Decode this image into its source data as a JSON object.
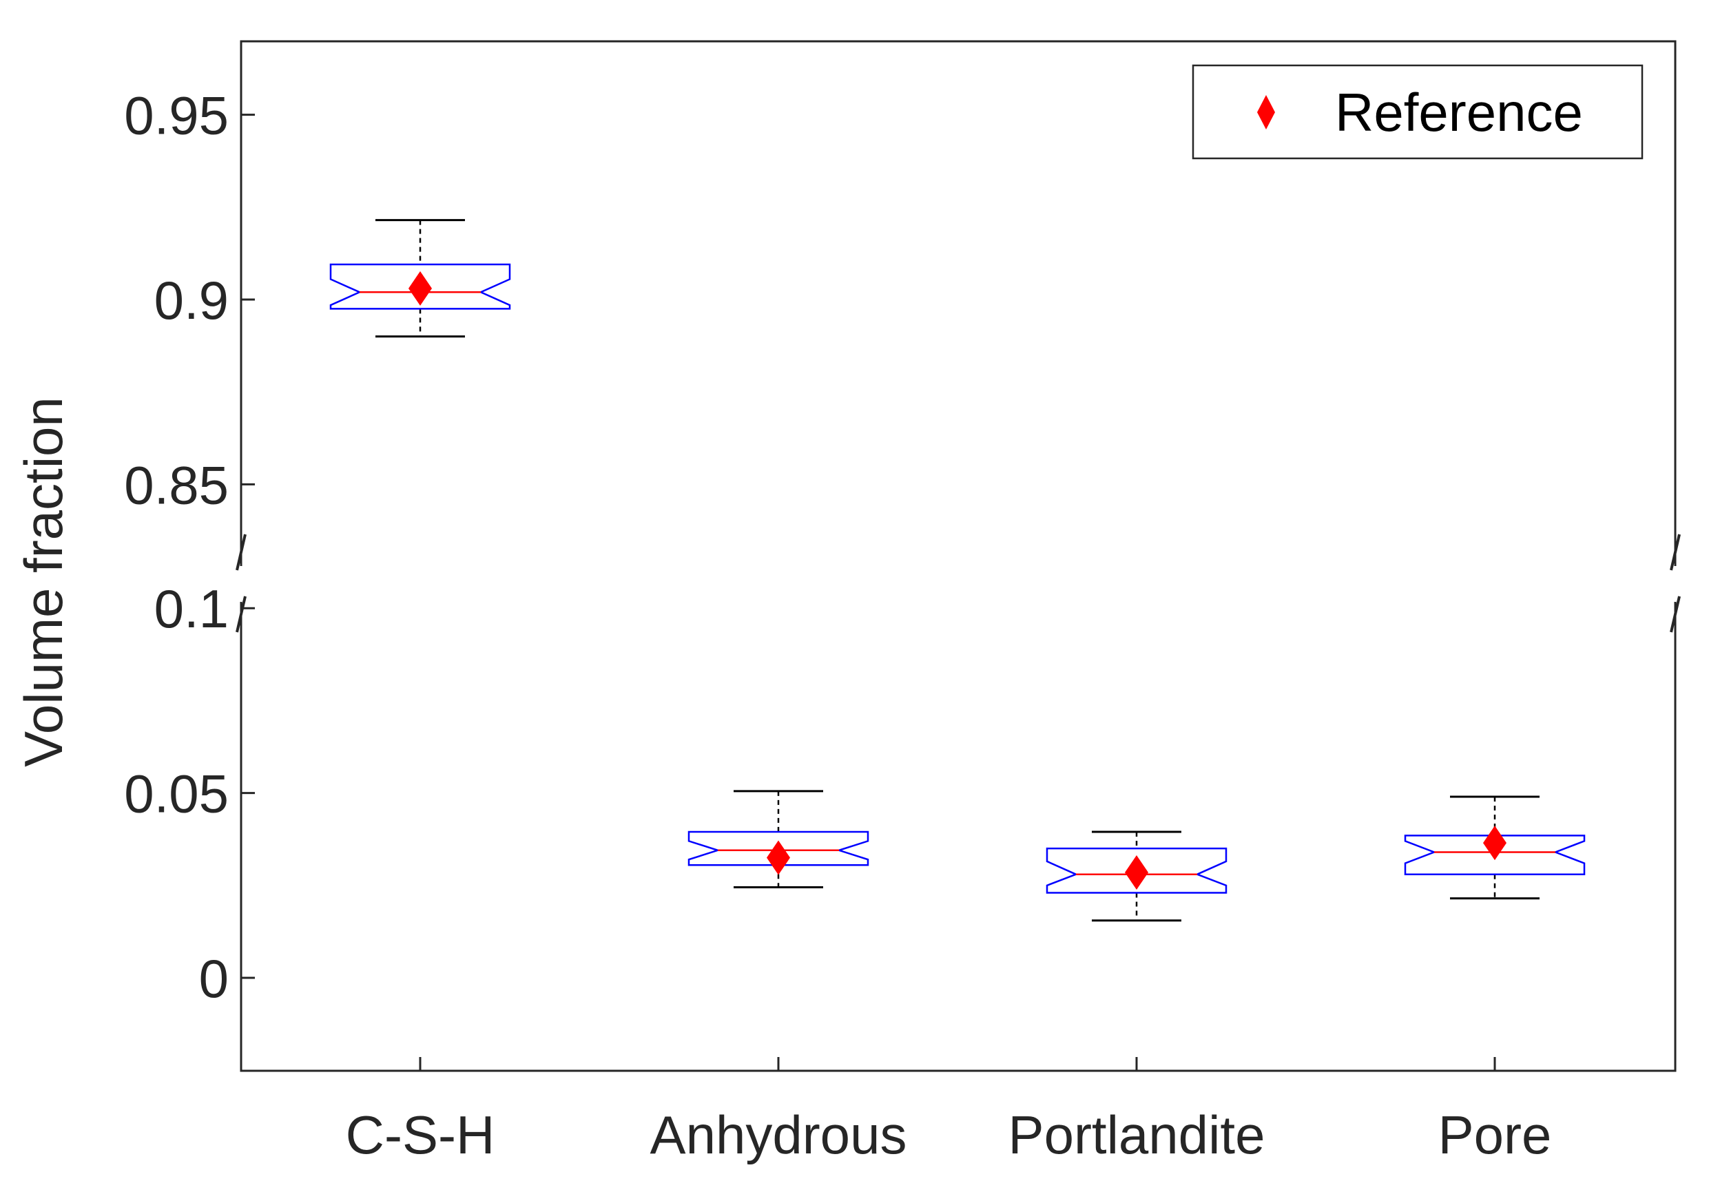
{
  "chart_data": {
    "type": "boxplot",
    "ylabel": "Volume fraction",
    "xlabel": "",
    "broken_y_axis": true,
    "lower_segment_ylim": [
      -0.025,
      0.1
    ],
    "upper_segment_ylim": [
      0.85,
      0.97
    ],
    "yticks_lower": [
      "0",
      "0.05",
      "0.1"
    ],
    "yticks_upper": [
      "0.85",
      "0.9",
      "0.95"
    ],
    "categories": [
      "C-S-H",
      "Anhydrous",
      "Portlandite",
      "Pore"
    ],
    "boxes": [
      {
        "category": "C-S-H",
        "whisker_low": 0.89,
        "q1": 0.8975,
        "median": 0.902,
        "q3": 0.9095,
        "whisker_high": 0.9215,
        "notch_low": 0.8985,
        "notch_high": 0.9055
      },
      {
        "category": "Anhydrous",
        "whisker_low": 0.0245,
        "q1": 0.0305,
        "median": 0.0345,
        "q3": 0.0395,
        "whisker_high": 0.0505,
        "notch_low": 0.032,
        "notch_high": 0.037
      },
      {
        "category": "Portlandite",
        "whisker_low": 0.0155,
        "q1": 0.023,
        "median": 0.028,
        "q3": 0.035,
        "whisker_high": 0.0395,
        "notch_low": 0.025,
        "notch_high": 0.0315
      },
      {
        "category": "Pore",
        "whisker_low": 0.0215,
        "q1": 0.028,
        "median": 0.034,
        "q3": 0.0385,
        "whisker_high": 0.049,
        "notch_low": 0.031,
        "notch_high": 0.037
      }
    ],
    "reference_series": {
      "name": "Reference",
      "marker": "diamond",
      "values": [
        0.903,
        0.0325,
        0.0285,
        0.0365
      ]
    },
    "legend": {
      "entries": [
        "Reference"
      ],
      "placement": "top-right"
    },
    "grid": false,
    "colors": {
      "box": "#0000ff",
      "median": "#ff0000",
      "whisker": "#000000",
      "reference": "#ff0000",
      "axis": "#262626"
    }
  }
}
